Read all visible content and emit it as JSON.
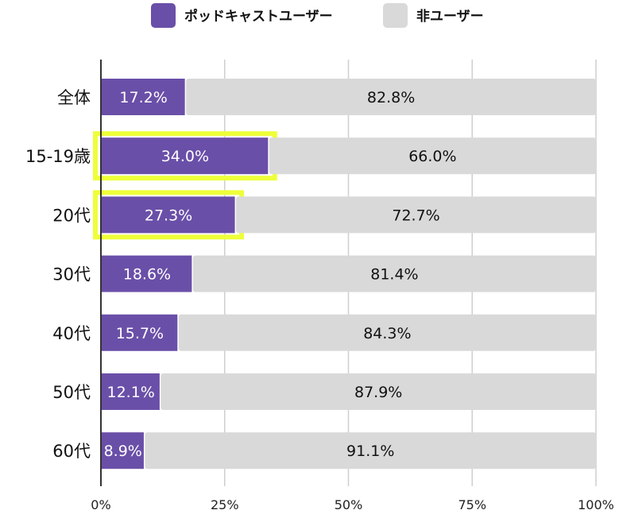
{
  "chart_data": {
    "type": "bar",
    "orientation": "horizontal",
    "stacked": true,
    "categories": [
      "全体",
      "15-19歳",
      "20代",
      "30代",
      "40代",
      "50代",
      "60代"
    ],
    "series": [
      {
        "name": "ポッドキャストユーザー",
        "color": "#6a4fa8",
        "values": [
          17.2,
          34.0,
          27.3,
          18.6,
          15.7,
          12.1,
          8.9
        ],
        "labels": [
          "17.2%",
          "34.0%",
          "27.3%",
          "18.6%",
          "15.7%",
          "12.1%",
          "8.9%"
        ]
      },
      {
        "name": "非ユーザー",
        "color": "#d9d9d9",
        "values": [
          82.8,
          66.0,
          72.7,
          81.4,
          84.3,
          87.9,
          91.1
        ],
        "labels": [
          "82.8%",
          "66.0%",
          "72.7%",
          "81.4%",
          "84.3%",
          "87.9%",
          "91.1%"
        ]
      }
    ],
    "xlim": [
      0,
      100
    ],
    "xticks": [
      "0%",
      "25%",
      "50%",
      "75%",
      "100%"
    ],
    "grid": true,
    "legend": "top",
    "highlighted_categories": [
      "15-19歳",
      "20代"
    ],
    "highlight_color": "#eeff3a"
  }
}
